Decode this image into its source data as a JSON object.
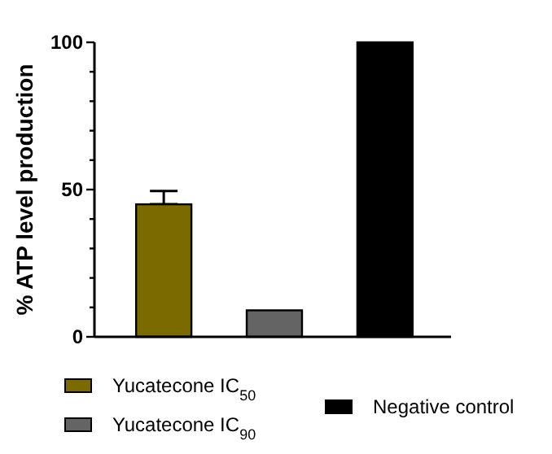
{
  "chart_data": {
    "type": "bar",
    "ylabel": "% ATP level production",
    "categories": [
      null,
      null,
      null
    ],
    "stacked": true,
    "series": [
      {
        "name": "Yucatecone IC$_{50}$",
        "color": "#7a6a00",
        "values": [
          45,
          null,
          null
        ],
        "errors": [
          [
            45,
            49.5
          ],
          null,
          null
        ]
      },
      {
        "name": "Yucatecone IC$_{90}$",
        "color": "#646464",
        "values": [
          null,
          9,
          null
        ]
      },
      {
        "name": "Negative control",
        "color": "#000000",
        "values": [
          null,
          null,
          100
        ]
      }
    ],
    "ylim": [
      0,
      100
    ],
    "yticks": [
      0,
      {
        "value": 10,
        "label": null
      },
      {
        "value": 20,
        "label": null
      },
      {
        "value": 30,
        "label": null
      },
      {
        "value": 40,
        "label": null
      },
      50,
      {
        "value": 60,
        "label": null
      },
      {
        "value": 70,
        "label": null
      },
      {
        "value": 80,
        "label": null
      },
      {
        "value": 90,
        "label": null
      },
      100
    ],
    "grid": false,
    "legend": "bottom"
  }
}
